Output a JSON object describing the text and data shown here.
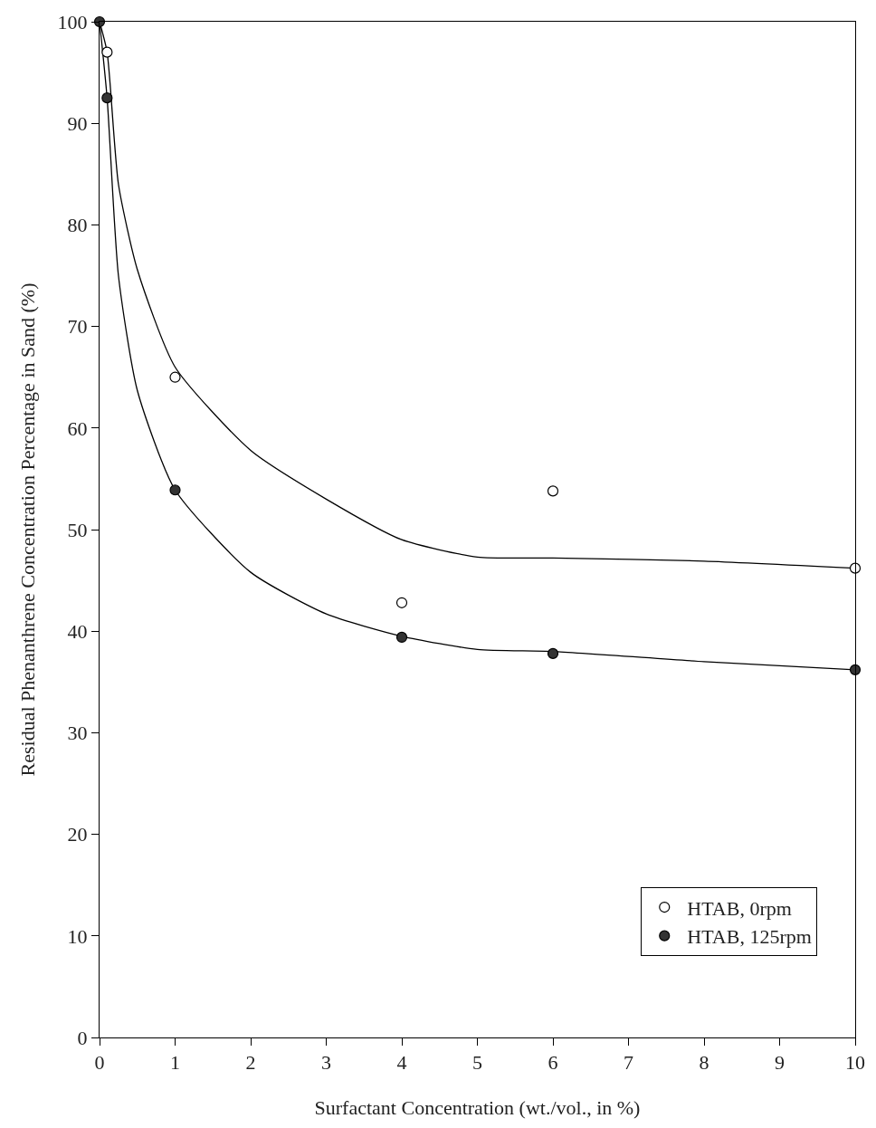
{
  "chart_data": {
    "type": "scatter",
    "xlabel": "Surfactant Concentration (wt./vol., in %)",
    "ylabel": "Residual Phenanthrene Concentration Percentage in Sand (%)",
    "xlim": [
      0,
      10
    ],
    "xticks": [
      0,
      1,
      2,
      3,
      4,
      5,
      6,
      7,
      8,
      9,
      10
    ],
    "ylim": [
      0,
      100
    ],
    "yticks": [
      0,
      10,
      20,
      30,
      40,
      50,
      60,
      70,
      80,
      90,
      100
    ],
    "grid": false,
    "legend": "bottom right",
    "marker": "circle",
    "series": [
      {
        "name": "HTAB, 0rpm",
        "color": "#ffffff",
        "x": [
          0.1,
          1,
          4,
          6,
          10
        ],
        "values": [
          97,
          65,
          42.8,
          53.8,
          46.2
        ]
      },
      {
        "name": "HTAB, 125rpm",
        "color": "#333333",
        "x": [
          0,
          0.1,
          1,
          4,
          6,
          10
        ],
        "values": [
          100,
          92.5,
          53.9,
          39.4,
          37.8,
          36.2
        ]
      },
      {
        "type": "line",
        "marker": "none",
        "color": "#000000",
        "x": [
          0,
          0.1,
          0.25,
          0.5,
          1,
          2,
          3,
          4,
          5,
          6,
          8,
          10
        ],
        "values": [
          100,
          97,
          84,
          75.6,
          66,
          57.8,
          53,
          49,
          47.3,
          47.2,
          46.9,
          46.2
        ]
      },
      {
        "type": "line",
        "marker": "none",
        "color": "#000000",
        "x": [
          0,
          0.1,
          0.25,
          0.5,
          1,
          2,
          3,
          4,
          5,
          6,
          8,
          10
        ],
        "values": [
          100,
          92.5,
          75,
          63.7,
          53.9,
          45.8,
          41.7,
          39.5,
          38.2,
          38,
          37,
          36.2
        ]
      }
    ]
  }
}
